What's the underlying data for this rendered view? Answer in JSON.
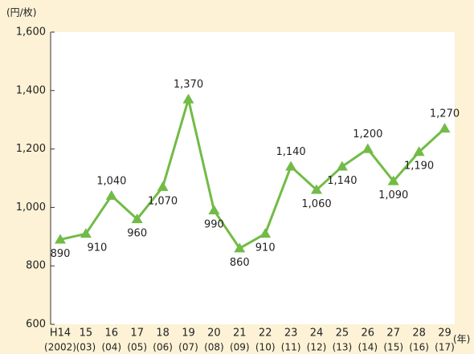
{
  "chart_data": {
    "type": "line",
    "y_unit_label": "(円/枚)",
    "x_unit_label": "(年)",
    "categories": [
      "H14",
      "15",
      "16",
      "17",
      "18",
      "19",
      "20",
      "21",
      "22",
      "23",
      "24",
      "25",
      "26",
      "27",
      "28",
      "29"
    ],
    "sub_categories": [
      "(2002)",
      "(03)",
      "(04)",
      "(05)",
      "(06)",
      "(07)",
      "(08)",
      "(09)",
      "(10)",
      "(11)",
      "(12)",
      "(13)",
      "(14)",
      "(15)",
      "(16)",
      "(17)"
    ],
    "values": [
      890,
      910,
      1040,
      960,
      1070,
      1370,
      990,
      860,
      910,
      1140,
      1060,
      1140,
      1200,
      1090,
      1190,
      1270
    ],
    "value_labels": [
      "890",
      "910",
      "1,040",
      "960",
      "1,070",
      "1,370",
      "990",
      "860",
      "910",
      "1,140",
      "1,060",
      "1,140",
      "1,200",
      "1,090",
      "1,190",
      "1,270"
    ],
    "color": "#72bb47",
    "ylim": [
      600,
      1600
    ],
    "yticks": [
      {
        "value": 600,
        "label": "600"
      },
      {
        "value": 800,
        "label": "800"
      },
      {
        "value": 1000,
        "label": "1,000"
      },
      {
        "value": 1200,
        "label": "1,200"
      },
      {
        "value": 1400,
        "label": "1,400"
      },
      {
        "value": 1600,
        "label": "1,600"
      }
    ],
    "grid": false
  }
}
